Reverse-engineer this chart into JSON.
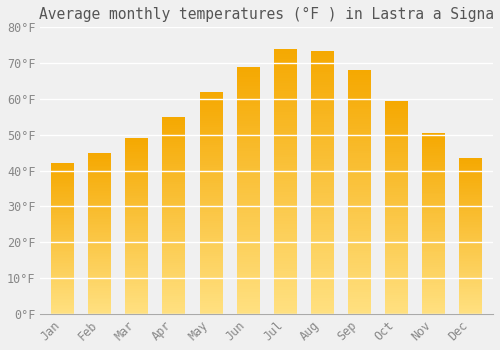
{
  "title": "Average monthly temperatures (°F ) in Lastra a Signa",
  "months": [
    "Jan",
    "Feb",
    "Mar",
    "Apr",
    "May",
    "Jun",
    "Jul",
    "Aug",
    "Sep",
    "Oct",
    "Nov",
    "Dec"
  ],
  "values": [
    42,
    45,
    49,
    55,
    62,
    69,
    74,
    73.5,
    68,
    59.5,
    50.5,
    43.5
  ],
  "bar_color_top": "#F5A800",
  "bar_color_bottom": "#FFE080",
  "ylim": [
    0,
    80
  ],
  "yticks": [
    0,
    10,
    20,
    30,
    40,
    50,
    60,
    70,
    80
  ],
  "ytick_labels": [
    "0°F",
    "10°F",
    "20°F",
    "30°F",
    "40°F",
    "50°F",
    "60°F",
    "70°F",
    "80°F"
  ],
  "background_color": "#F0F0F0",
  "grid_color": "#FFFFFF",
  "title_fontsize": 10.5,
  "tick_fontsize": 8.5,
  "font_family": "monospace"
}
